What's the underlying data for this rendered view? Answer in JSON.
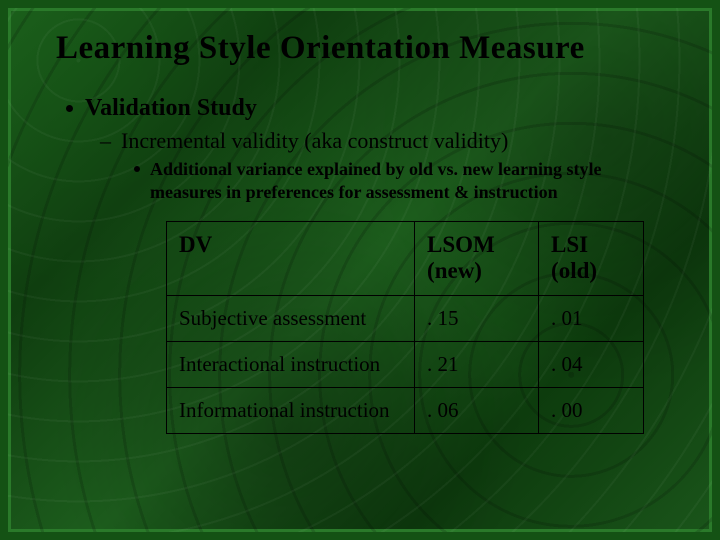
{
  "slide": {
    "title": "Learning Style Orientation Measure",
    "level1": "Validation Study",
    "level2": "Incremental validity  (aka construct validity)",
    "level3": "Additional variance explained by old vs. new learning style measures in preferences for assessment & instruction",
    "table": {
      "headers": {
        "dv": "DV",
        "lsom_line1": "LSOM",
        "lsom_line2": "(new)",
        "lsi_line1": "LSI",
        "lsi_line2": "(old)"
      },
      "rows": [
        {
          "dv": "Subjective assessment",
          "lsom": ". 15",
          "lsi": ". 01"
        },
        {
          "dv": "Interactional instruction",
          "lsom": ". 21",
          "lsi": ". 04"
        },
        {
          "dv": "Informational instruction",
          "lsom": ". 06",
          "lsi": ". 00"
        }
      ]
    },
    "colors": {
      "frame_outer": "#145214",
      "frame_inner": "#2a7a2a",
      "text": "#000000",
      "bg_gradient": [
        "#1a5c1a",
        "#0f3d0f",
        "#1d5e1d",
        "#0d3a0d",
        "#1a551a"
      ]
    }
  }
}
